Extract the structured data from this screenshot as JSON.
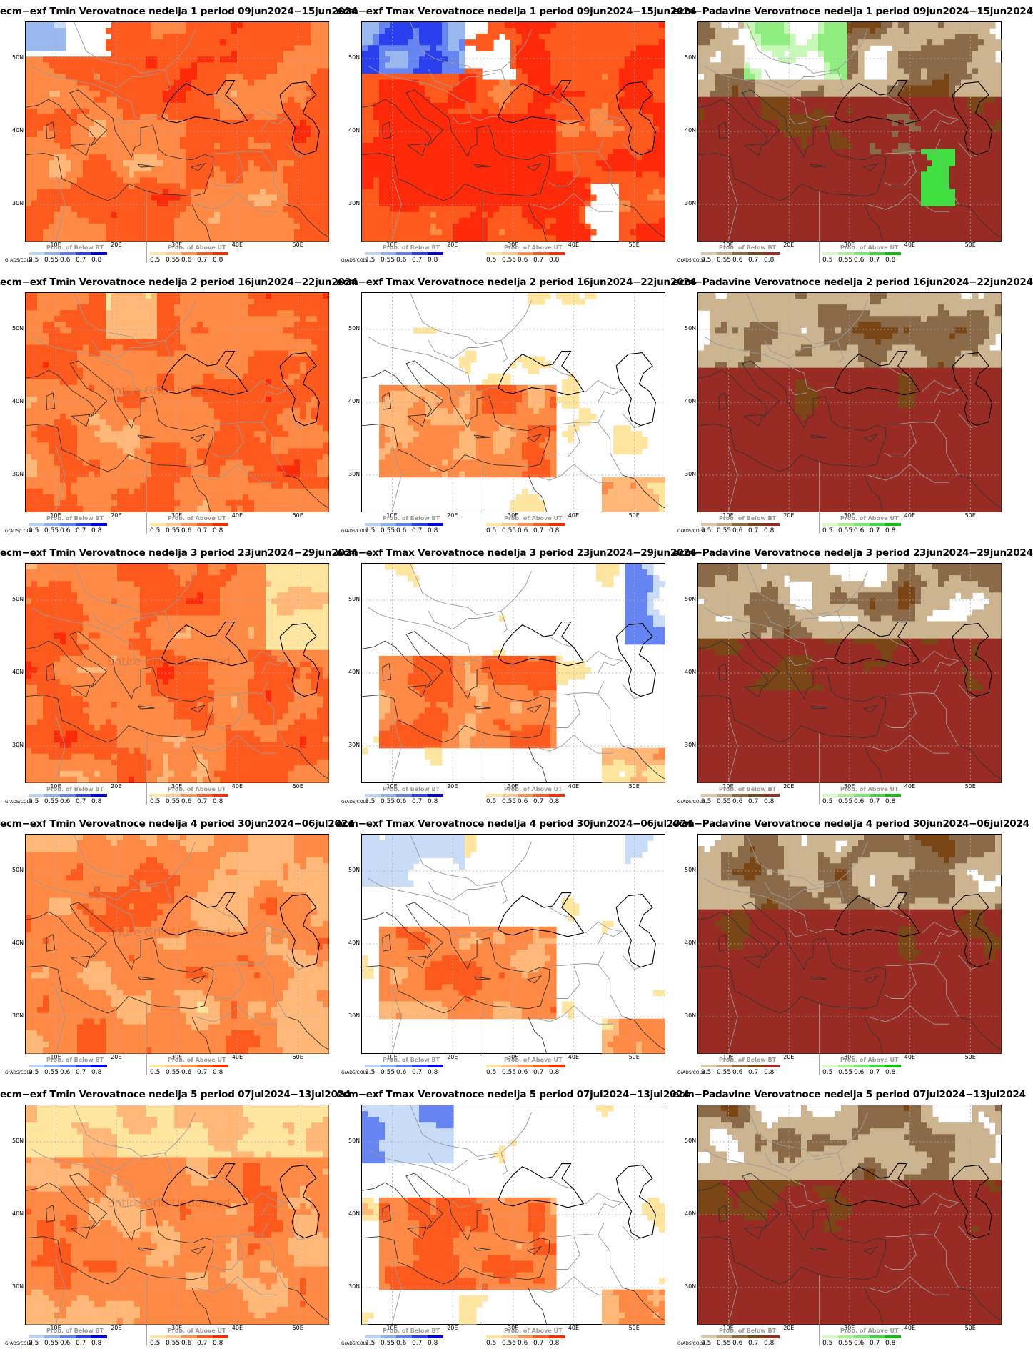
{
  "titles": [
    [
      "ecm−exf Tmin Verovatnoce nedelja 1 period 09jun2024−15jun2024",
      "ecm−exf Tmax Verovatnoce nedelja 1 period 09jun2024−15jun2024",
      "ecm−Padavine Verovatnoce nedelja 1 period 09jun2024−15jun2024"
    ],
    [
      "ecm−exf Tmin Verovatnoce nedelja 2 period 16jun2024−22jun2024",
      "ecm−exf Tmax Verovatnoce nedelja 2 period 16jun2024−22jun2024",
      "ecm−Padavine Verovatnoce nedelja 2 period 16jun2024−22jun2024"
    ],
    [
      "ecm−exf Tmin Verovatnoce nedelja 3 period 23jun2024−29jun2024",
      "ecm−exf Tmax Verovatnoce nedelja 3 period 23jun2024−29jun2024",
      "ecm−Padavine Verovatnoce nedelja 3 period 23jun2024−29jun2024"
    ],
    [
      "ecm−exf Tmin Verovatnoce nedelja 4 period 30jun2024−06jul2024",
      "ecm−exf Tmax Verovatnoce nedelja 4 period 30jun2024−06jul2024",
      "ecm−Padavine Verovatnoce nedelja 4 period 30jun2024−06jul2024"
    ],
    [
      "ecm−exf Tmin Verovatnoce nedelja 5 period 07jul2024−13jul2024",
      "ecm−exf Tmax Verovatnoce nedelja 5 period 07jul2024−13jul2024",
      "ecm−Padavine Verovatnoce nedelja 5 period 07jul2024−13jul2024"
    ]
  ],
  "lat_labels": [
    "50N",
    "40N",
    "30N"
  ],
  "lon_labels": [
    "10E",
    "20E",
    "30E",
    "40E",
    "50E"
  ],
  "grads_label": "GrADS/COLA",
  "watermark": "Entire Grid Undefined",
  "colorbar": {
    "ticks_left": [
      "0.5",
      "0.55",
      "0.6",
      "0.7",
      "0.8"
    ],
    "ticks_right": [
      "0.5",
      "0.55",
      "0.6",
      "0.7",
      "0.8"
    ],
    "temp": {
      "left_caption": "Prob. of Below BT",
      "right_caption": "Prob. of Above UT",
      "left_colors": [
        "#bcd2f2",
        "#8fb0ee",
        "#5d7df0",
        "#2a3ff2",
        "#0000e0"
      ],
      "right_colors": [
        "#ffe6a0",
        "#ffc890",
        "#ff9050",
        "#ff5a1e",
        "#ff2a00"
      ]
    },
    "precip": {
      "left_caption": "Prob. of Below BT",
      "right_caption": "Prob. of Above UT",
      "left_colors": [
        "#d9c8a8",
        "#c2a47c",
        "#8f6a3e",
        "#7a4816",
        "#9a2b25"
      ],
      "right_colors": [
        "#d8f8c8",
        "#a8f090",
        "#78e870",
        "#40d840",
        "#10c010"
      ]
    }
  },
  "colors": {
    "temp_above": [
      "#ffffff",
      "#ffe6a0",
      "#ffb878",
      "#ff8a45",
      "#ff5a1e",
      "#ff2a0a"
    ],
    "temp_below": [
      "#ffffff",
      "#c8dcf8",
      "#9ab8f0",
      "#6685f2",
      "#2a40ee"
    ],
    "precip_dry": [
      "#ffffff",
      "#ccb490",
      "#8a6a48",
      "#7a4616",
      "#982c24"
    ],
    "precip_wet": [
      "#ffffff",
      "#c8f8b8",
      "#90ee80",
      "#40e040"
    ]
  },
  "maps": [
    [
      "tmin",
      "tmax",
      "precip"
    ],
    [
      "tmin",
      "tmax",
      "precip"
    ],
    [
      "tmin",
      "tmax",
      "precip"
    ],
    [
      "tmin",
      "tmax",
      "precip"
    ],
    [
      "tmin",
      "tmax",
      "precip"
    ]
  ]
}
